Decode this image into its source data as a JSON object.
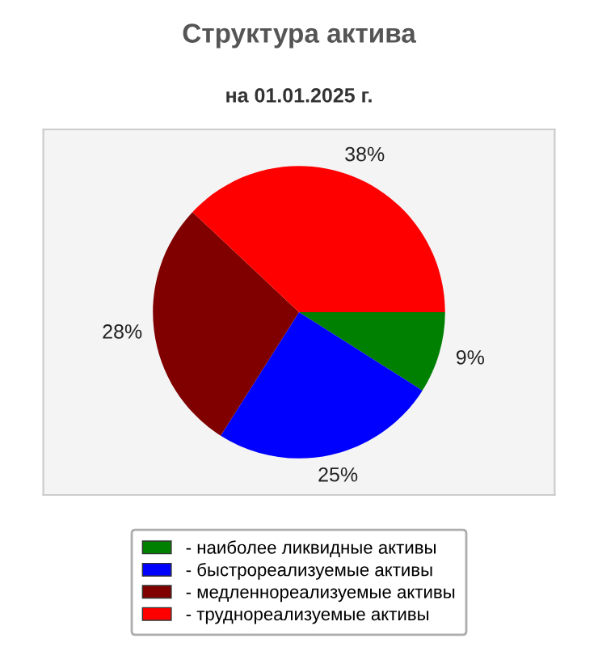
{
  "chart_data": {
    "type": "pie",
    "title": "Структура актива",
    "subtitle": "на 01.01.2025 г.",
    "categories": [
      "- наиболее ликвидные активы",
      "- быстрореализуемые активы",
      "- медленнореализуемые активы",
      "- труднореализуемые активы"
    ],
    "values": [
      9,
      25,
      28,
      38
    ],
    "value_labels": [
      "9%",
      "25%",
      "28%",
      "38%"
    ],
    "colors": [
      "#008000",
      "#0000ff",
      "#800000",
      "#ff0000"
    ],
    "legend": "bottom"
  }
}
